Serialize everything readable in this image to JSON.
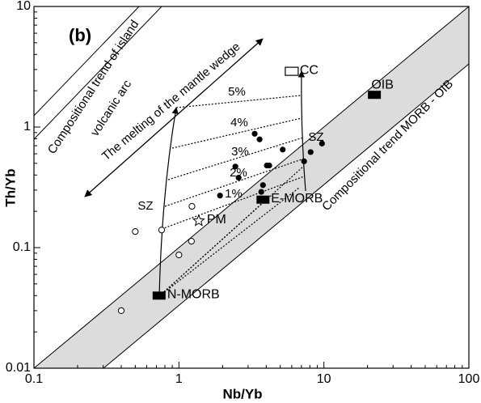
{
  "chart_data": {
    "type": "scatter",
    "panel_label": "(b)",
    "x_label": "Nb/Yb",
    "y_label": "Th/Yb",
    "log_x": true,
    "log_y": true,
    "xlim": [
      0.1,
      100
    ],
    "ylim": [
      0.01,
      10
    ],
    "xticks": [
      0.1,
      1,
      10,
      100
    ],
    "yticks": [
      0.01,
      0.1,
      1,
      10
    ],
    "series": [
      {
        "marker": "filled-circle",
        "color": "#000000",
        "x": [
          2.45,
          2.58,
          3.33,
          3.6,
          4.04,
          4.2,
          3.8,
          3.7,
          1.92,
          5.2,
          7.3,
          8.1,
          9.7
        ],
        "values": [
          0.47,
          0.38,
          0.88,
          0.79,
          0.48,
          0.48,
          0.33,
          0.29,
          0.27,
          0.65,
          0.52,
          0.62,
          0.73
        ]
      },
      {
        "marker": "open-circle",
        "color": "#000000",
        "x": [
          0.5,
          0.76,
          1.22,
          1.0,
          0.4,
          1.23
        ],
        "values": [
          0.136,
          0.14,
          0.113,
          0.087,
          0.03,
          0.22
        ]
      }
    ],
    "points": [
      {
        "label": "N-MORB",
        "marker": "filled-rect",
        "x": 0.73,
        "y": 0.04
      },
      {
        "label": "E-MORB",
        "marker": "filled-rect",
        "x": 3.8,
        "y": 0.25
      },
      {
        "label": "OIB",
        "marker": "filled-rect",
        "x": 22.3,
        "y": 1.85
      },
      {
        "label": "CC",
        "marker": "open-rect",
        "x": 6.0,
        "y": 2.9
      },
      {
        "label": "PM",
        "marker": "open-star",
        "x": 1.37,
        "y": 0.167
      }
    ],
    "annotations": [
      "Compositional trend of island",
      "volcanic arc",
      "The melting of the mantle wedge",
      "Compositional trend MORB - OIB",
      "5%",
      "4%",
      "3%",
      "2%",
      "1%",
      "SZ",
      "SZ"
    ]
  }
}
